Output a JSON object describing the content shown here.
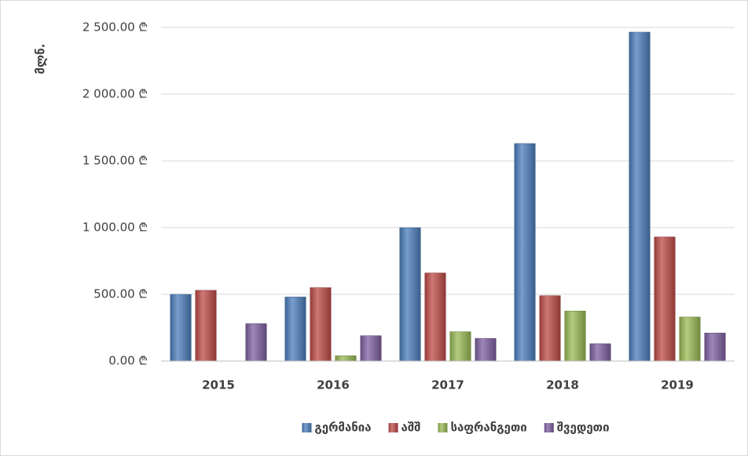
{
  "chart_data": {
    "type": "bar",
    "y_label": "მლნ.",
    "categories": [
      "2015",
      "2016",
      "2017",
      "2018",
      "2019"
    ],
    "series": [
      {
        "name": "გერმანია",
        "color": "#4a7ebb",
        "values": [
          500,
          480,
          1000,
          1630,
          2465
        ]
      },
      {
        "name": "აშშ",
        "color": "#be4b48",
        "values": [
          530,
          550,
          660,
          490,
          930
        ]
      },
      {
        "name": "საფრანგეთი",
        "color": "#98b954",
        "values": [
          0,
          40,
          220,
          375,
          330
        ]
      },
      {
        "name": "შვედეთი",
        "color": "#7d60a0",
        "values": [
          280,
          190,
          170,
          130,
          210
        ]
      }
    ],
    "ylim": [
      0,
      2500
    ],
    "yticks": [
      {
        "value": 0,
        "label": "0.00 ₾"
      },
      {
        "value": 500,
        "label": "500.00 ₾"
      },
      {
        "value": 1000,
        "label": "1 000.00 ₾"
      },
      {
        "value": 1500,
        "label": "1 500.00 ₾"
      },
      {
        "value": 2000,
        "label": "2 000.00 ₾"
      },
      {
        "value": 2500,
        "label": "2 500.00 ₾"
      }
    ],
    "grid": true,
    "legend": "bottom"
  }
}
